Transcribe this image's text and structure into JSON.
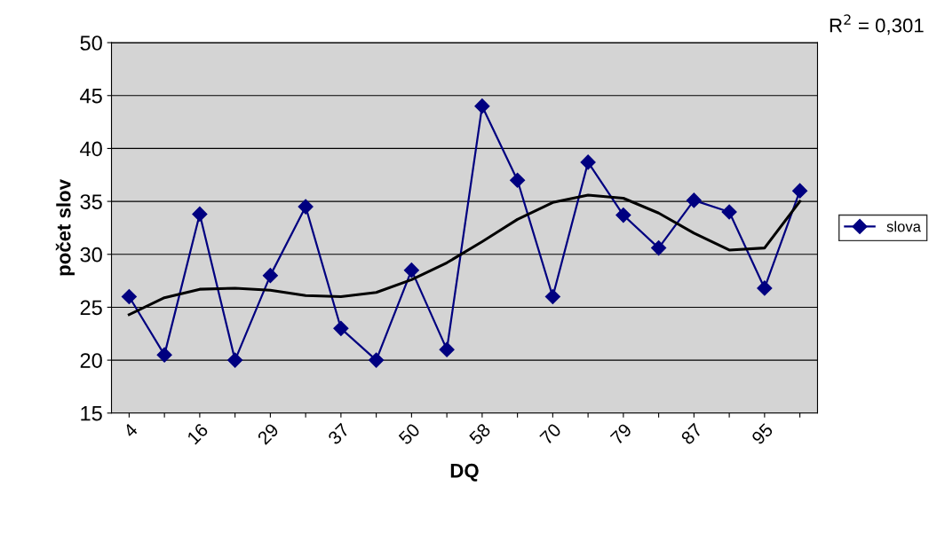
{
  "chart_data": {
    "type": "line",
    "xlabel": "DQ",
    "ylabel": "počet slov",
    "categories": [
      "4",
      null,
      "16",
      null,
      "29",
      null,
      "37",
      null,
      "50",
      null,
      "58",
      null,
      "70",
      null,
      "79",
      null,
      "87",
      null,
      "95",
      null
    ],
    "series": [
      {
        "name": "slova",
        "color": "#000080",
        "marker": "diamond",
        "values": [
          26,
          20.5,
          33.8,
          20,
          28,
          34.5,
          23,
          20,
          28.5,
          21,
          44,
          37,
          26,
          38.7,
          33.7,
          30.6,
          35.1,
          34,
          26.8,
          36
        ]
      },
      {
        "color": "#000000",
        "marker": "none",
        "values": [
          24.3,
          25.9,
          26.7,
          26.8,
          26.6,
          26.1,
          26.0,
          26.4,
          27.6,
          29.2,
          31.2,
          33.3,
          34.9,
          35.6,
          35.3,
          33.9,
          32.0,
          30.4,
          30.6,
          35.0
        ]
      }
    ],
    "ylim": [
      15,
      50
    ],
    "yticks": [
      15,
      20,
      25,
      30,
      35,
      40,
      45,
      50
    ],
    "grid": "y",
    "legend": "right",
    "annotations": [
      "R$^{2}$ = 0,301"
    ]
  }
}
